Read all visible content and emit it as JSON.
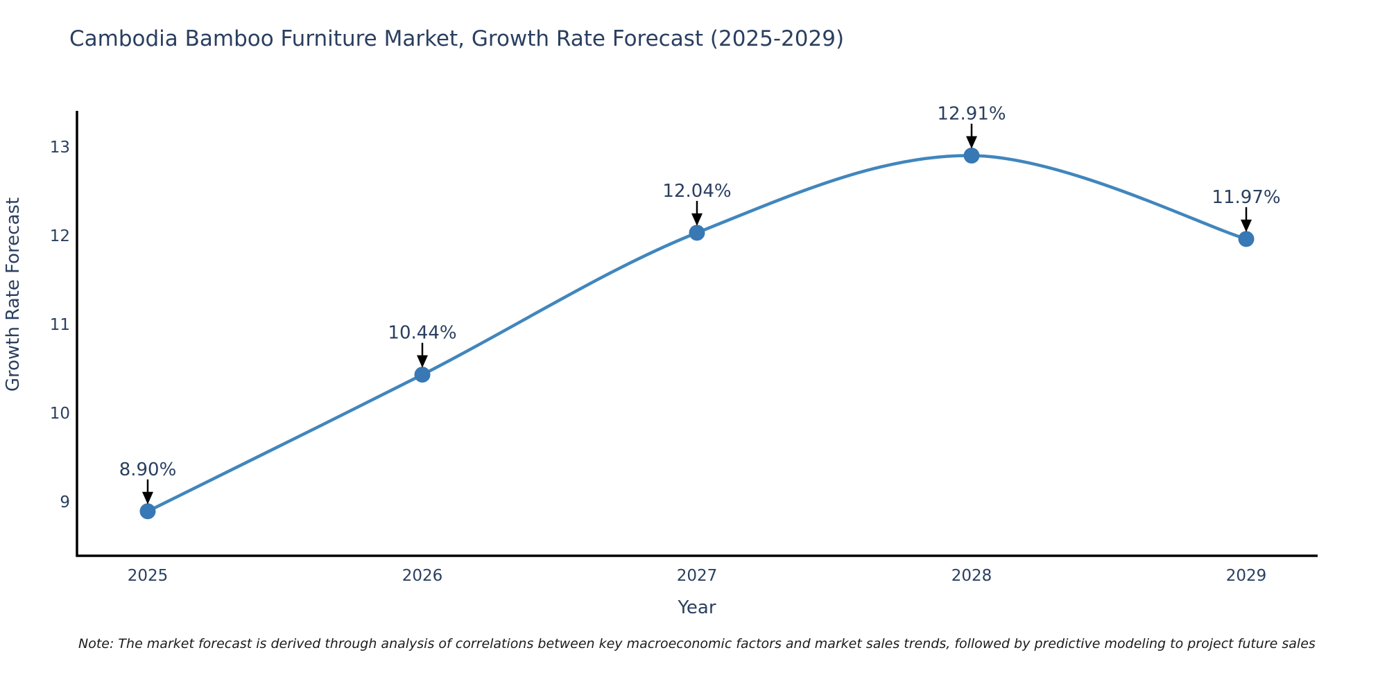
{
  "title": "Cambodia Bamboo Furniture Market, Growth Rate Forecast (2025-2029)",
  "note": "Note: The market forecast is derived through analysis of correlations between key macroeconomic factors and market sales trends, followed by predictive modeling to project future sales",
  "chart_data": {
    "type": "line",
    "title": "Cambodia Bamboo Furniture Market, Growth Rate Forecast (2025-2029)",
    "x": [
      2025,
      2026,
      2027,
      2028,
      2029
    ],
    "values": [
      8.9,
      10.44,
      12.04,
      12.91,
      11.97
    ],
    "point_labels": [
      "8.90%",
      "10.44%",
      "12.04%",
      "12.91%",
      "11.97%"
    ],
    "xlabel": "Year",
    "ylabel": "Growth Rate Forecast",
    "yticks": [
      9,
      10,
      11,
      12,
      13
    ],
    "ylim": [
      8.4,
      13.4
    ],
    "line_shape": "spline",
    "grid": false,
    "legend": "none",
    "annotation_note": "each point labeled with value and black arrow pointing to marker",
    "colors": {
      "line": "#4186bd",
      "marker": "#3878b4",
      "axis_line": "#000000",
      "label_text": "#2a3f5f",
      "annotation_arrow": "#000000",
      "note_text": "#1a1a1a",
      "background": "#ffffff"
    }
  }
}
